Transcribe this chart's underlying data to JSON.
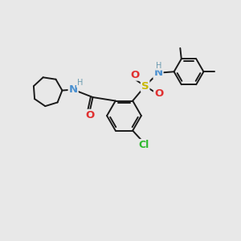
{
  "background_color": "#e8e8e8",
  "figure_size": [
    3.0,
    3.0
  ],
  "dpi": 100,
  "bond_color": "#1a1a1a",
  "bond_width": 1.4,
  "atom_colors": {
    "C": "#1a1a1a",
    "N": "#4a90d0",
    "O": "#e03030",
    "S": "#c8b800",
    "Cl": "#2db82d",
    "H": "#6a9ab0"
  },
  "font_size": 8.5
}
